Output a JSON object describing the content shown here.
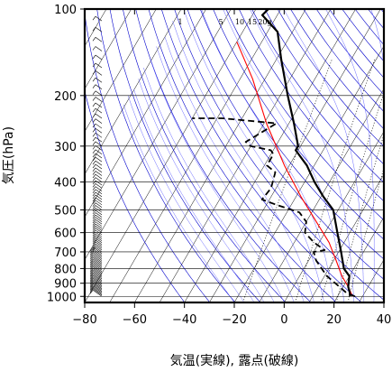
{
  "chart_data": {
    "type": "line",
    "title": "",
    "xlabel": "気温(実線), 露点(破線)",
    "ylabel": "気圧(hPa)",
    "xlim": [
      -80,
      40
    ],
    "ylim": [
      1050,
      100
    ],
    "y_scale": "log",
    "x_ticks": [
      "−80",
      "−60",
      "−40",
      "−20",
      "0",
      "20",
      "40"
    ],
    "x_tick_values": [
      -80,
      -60,
      -40,
      -20,
      0,
      20,
      40
    ],
    "y_ticks": [
      "100",
      "200",
      "300",
      "400",
      "500",
      "600",
      "700",
      "800",
      "900",
      "1000"
    ],
    "y_tick_values": [
      100,
      200,
      300,
      400,
      500,
      600,
      700,
      800,
      900,
      1000
    ],
    "mixing_ratio_labels": [
      "1",
      "5",
      "10",
      "15",
      "20g"
    ],
    "colors": {
      "temperature": "#000000",
      "dewpoint": "#000000",
      "parcel": "#ff0000",
      "isotherm": "#000000",
      "dry_adiabat": "#0000cc",
      "moist_adiabat": "#6666ff",
      "mixing_ratio": "#000000"
    },
    "series": [
      {
        "name": "",
        "style": "solid",
        "points": [
          [
            25,
            1000
          ],
          [
            24,
            970
          ],
          [
            22,
            925
          ],
          [
            20,
            850
          ],
          [
            16,
            800
          ],
          [
            11,
            700
          ],
          [
            5,
            600
          ],
          [
            -2,
            500
          ],
          [
            -9,
            450
          ],
          [
            -16,
            400
          ],
          [
            -23,
            350
          ],
          [
            -31,
            310
          ],
          [
            -31,
            300
          ],
          [
            -38,
            250
          ],
          [
            -47,
            200
          ],
          [
            -58,
            150
          ],
          [
            -66,
            120
          ],
          [
            -76,
            105
          ],
          [
            -75,
            100
          ]
        ]
      },
      {
        "name": "",
        "style": "dashed",
        "points": [
          [
            27,
            1000
          ],
          [
            23,
            975
          ],
          [
            16,
            900
          ],
          [
            11,
            850
          ],
          [
            3,
            750
          ],
          [
            0,
            700
          ],
          [
            4,
            690
          ],
          [
            -2,
            650
          ],
          [
            -8,
            600
          ],
          [
            -10,
            550
          ],
          [
            -15,
            510
          ],
          [
            -26,
            480
          ],
          [
            -33,
            460
          ],
          [
            -32,
            420
          ],
          [
            -34,
            370
          ],
          [
            -39,
            350
          ],
          [
            -39,
            320
          ],
          [
            -41,
            310
          ],
          [
            -50,
            300
          ],
          [
            -53,
            290
          ],
          [
            -45,
            250
          ],
          [
            -68,
            240
          ],
          [
            -80,
            240
          ]
        ]
      },
      {
        "name": "",
        "style": "parcel",
        "points": [
          [
            26,
            1000
          ],
          [
            22,
            925
          ],
          [
            17,
            850
          ],
          [
            11,
            750
          ],
          [
            4,
            650
          ],
          [
            -6,
            550
          ],
          [
            -18,
            450
          ],
          [
            -32,
            350
          ],
          [
            -49,
            250
          ],
          [
            -65,
            175
          ],
          [
            -80,
            130
          ]
        ]
      }
    ]
  }
}
